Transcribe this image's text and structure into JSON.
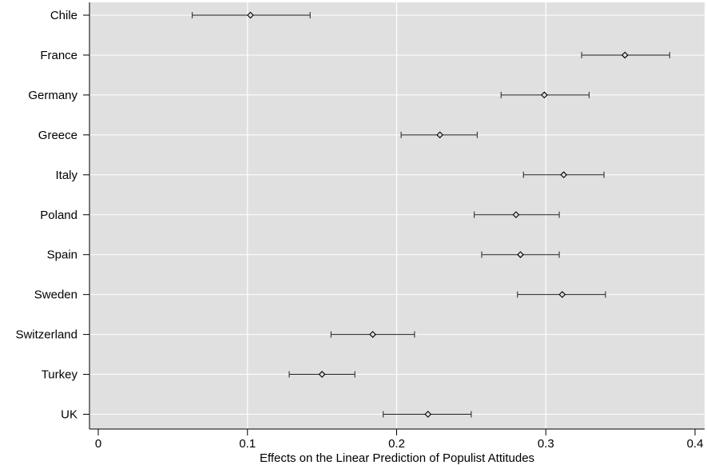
{
  "chart_data": {
    "type": "scatter",
    "orientation": "horizontal",
    "xlabel": "Effects on the Linear Prediction of Populist Attitudes",
    "xlim": [
      0,
      0.4
    ],
    "xticks": [
      0,
      0.1,
      0.2,
      0.3,
      0.4
    ],
    "xtick_labels": [
      "0",
      "0.1",
      "0.2",
      "0.3",
      "0.4"
    ],
    "grid": true,
    "background": "#e0e0e0",
    "gridline_color": "#ffffff",
    "marker": "diamond",
    "categories": [
      "Chile",
      "France",
      "Germany",
      "Greece",
      "Italy",
      "Poland",
      "Spain",
      "Sweden",
      "Switzerland",
      "Turkey",
      "UK"
    ],
    "estimates": [
      0.102,
      0.353,
      0.299,
      0.229,
      0.312,
      0.28,
      0.283,
      0.311,
      0.184,
      0.15,
      0.221
    ],
    "ci_low": [
      0.063,
      0.324,
      0.27,
      0.203,
      0.285,
      0.252,
      0.257,
      0.281,
      0.156,
      0.128,
      0.191
    ],
    "ci_high": [
      0.142,
      0.383,
      0.329,
      0.254,
      0.339,
      0.309,
      0.309,
      0.34,
      0.212,
      0.172,
      0.25
    ]
  }
}
